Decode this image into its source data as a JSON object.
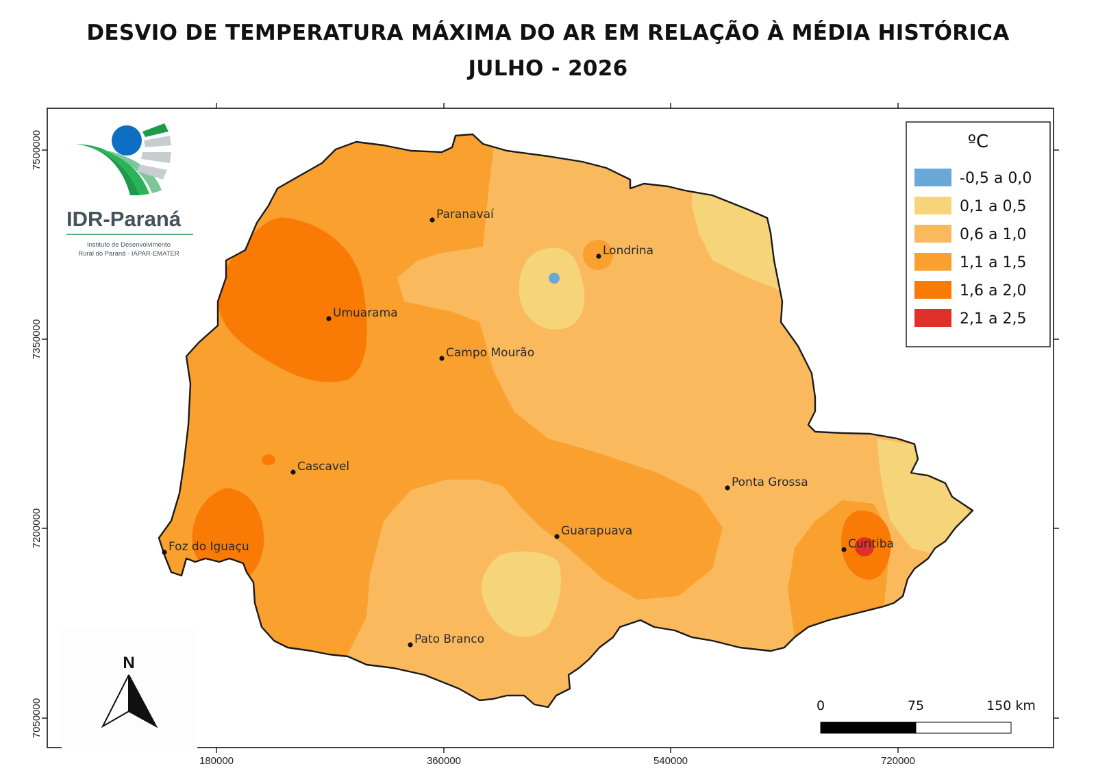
{
  "title_line1": "DESVIO DE TEMPERATURA MÁXIMA DO AR EM RELAÇÃO À MÉDIA HISTÓRICA",
  "title_line2": "JULHO - 2026",
  "logo": {
    "name": "IDR-Paraná",
    "subtitle_line1": "Instituto de Desenvolvimento",
    "subtitle_line2": "Rural do Paraná - IAPAR-EMATER",
    "colors": {
      "green": "#1e9a4a",
      "blue": "#0d6fc4",
      "gray": "#c8cdd0"
    }
  },
  "legend": {
    "unit": "ºC",
    "classes": [
      {
        "label": "-0,5 a 0,0",
        "color": "#6aa8d6"
      },
      {
        "label": "0,1 a 0,5",
        "color": "#f5d47a"
      },
      {
        "label": "0,6 a 1,0",
        "color": "#fbb95e"
      },
      {
        "label": "1,1 a 1,5",
        "color": "#f9a02f"
      },
      {
        "label": "1,6 a 2,0",
        "color": "#f97b06"
      },
      {
        "label": "2,1 a 2,5",
        "color": "#e0302a"
      }
    ]
  },
  "cities": [
    {
      "name": "Paranavaí"
    },
    {
      "name": "Londrina"
    },
    {
      "name": "Umuarama"
    },
    {
      "name": "Campo Mourão"
    },
    {
      "name": "Cascavel"
    },
    {
      "name": "Ponta Grossa"
    },
    {
      "name": "Guarapuava"
    },
    {
      "name": "Foz do Iguaçu"
    },
    {
      "name": "Curitiba"
    },
    {
      "name": "Pato Branco"
    }
  ],
  "axes": {
    "x_ticks": [
      "180000",
      "360000",
      "540000",
      "720000"
    ],
    "y_ticks": [
      "7500000",
      "7350000",
      "7200000",
      "7050000"
    ]
  },
  "scale_bar": {
    "labels": [
      "0",
      "75",
      "150 km"
    ]
  },
  "north_arrow": {
    "label": "N"
  }
}
